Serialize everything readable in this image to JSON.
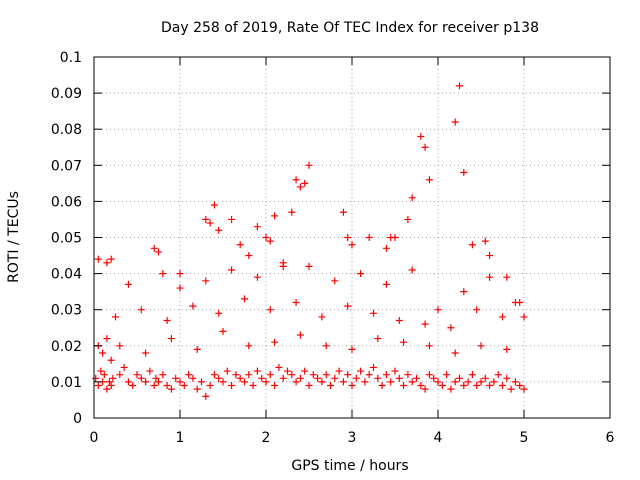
{
  "chart_data": {
    "type": "scatter",
    "title": "Day 258 of 2019, Rate Of TEC Index for receiver p138",
    "xlabel": "GPS time / hours",
    "ylabel": "ROTI / TECUs",
    "xlim": [
      0,
      6
    ],
    "ylim": [
      0,
      0.1
    ],
    "x_ticks": [
      "0",
      "1",
      "2",
      "3",
      "4",
      "5",
      "6"
    ],
    "y_ticks": [
      "0",
      "0.01",
      "0.02",
      "0.03",
      "0.04",
      "0.05",
      "0.06",
      "0.07",
      "0.08",
      "0.09",
      "0.1"
    ],
    "grid": true,
    "marker": "+",
    "color": "#ff0000",
    "series": [
      {
        "name": "ROTI",
        "x": [
          0.02,
          0.05,
          0.08,
          0.1,
          0.12,
          0.15,
          0.18,
          0.2,
          0.22,
          0.05,
          0.1,
          0.15,
          0.2,
          0.3,
          0.35,
          0.4,
          0.45,
          0.5,
          0.55,
          0.6,
          0.65,
          0.7,
          0.72,
          0.75,
          0.8,
          0.85,
          0.9,
          0.95,
          1.0,
          1.05,
          1.1,
          1.15,
          1.2,
          1.25,
          1.3,
          1.35,
          1.4,
          1.45,
          1.5,
          1.55,
          1.6,
          1.65,
          1.7,
          1.75,
          1.8,
          1.85,
          1.9,
          1.95,
          2.0,
          2.05,
          2.1,
          2.15,
          2.2,
          2.25,
          2.3,
          2.35,
          2.4,
          2.45,
          2.5,
          2.55,
          2.6,
          2.65,
          2.7,
          2.75,
          2.8,
          2.85,
          2.9,
          2.95,
          3.0,
          3.05,
          3.1,
          3.15,
          3.2,
          3.25,
          3.3,
          3.35,
          3.4,
          3.45,
          3.5,
          3.55,
          3.6,
          3.65,
          3.7,
          3.75,
          3.8,
          3.85,
          3.9,
          3.95,
          4.0,
          4.05,
          4.1,
          4.15,
          4.2,
          4.25,
          4.3,
          4.35,
          4.4,
          4.45,
          4.5,
          4.55,
          4.6,
          4.65,
          4.7,
          4.75,
          4.8,
          4.85,
          4.9,
          4.95,
          5.0,
          0.3,
          0.6,
          0.9,
          1.2,
          1.5,
          1.8,
          2.1,
          2.4,
          2.7,
          3.0,
          3.3,
          3.6,
          3.9,
          4.2,
          4.5,
          4.8,
          0.25,
          0.55,
          0.85,
          1.15,
          1.45,
          1.75,
          2.05,
          2.35,
          2.65,
          2.95,
          3.25,
          3.55,
          3.85,
          4.15,
          4.45,
          4.75,
          0.4,
          0.8,
          1.0,
          1.3,
          1.6,
          1.9,
          2.2,
          2.5,
          2.8,
          3.1,
          3.4,
          3.7,
          4.0,
          4.3,
          4.6,
          4.9,
          1.4,
          1.45,
          1.6,
          1.7,
          1.9,
          2.0,
          2.05,
          2.1,
          2.3,
          2.35,
          2.4,
          2.45,
          2.5,
          2.9,
          2.95,
          3.4,
          3.45,
          3.65,
          3.7,
          3.8,
          3.85,
          3.9,
          4.2,
          4.25,
          4.3,
          4.55,
          4.6,
          0.7,
          0.75,
          0.05,
          0.15,
          0.2,
          1.3,
          1.35,
          1.0,
          1.8,
          2.2,
          3.0,
          3.2,
          3.5,
          4.4,
          4.8,
          4.95,
          5.0
        ],
        "y": [
          0.011,
          0.009,
          0.013,
          0.01,
          0.012,
          0.008,
          0.01,
          0.009,
          0.011,
          0.02,
          0.018,
          0.022,
          0.016,
          0.012,
          0.014,
          0.01,
          0.009,
          0.012,
          0.011,
          0.01,
          0.013,
          0.009,
          0.011,
          0.01,
          0.012,
          0.009,
          0.008,
          0.011,
          0.01,
          0.009,
          0.012,
          0.011,
          0.008,
          0.01,
          0.006,
          0.009,
          0.012,
          0.011,
          0.01,
          0.013,
          0.009,
          0.012,
          0.011,
          0.01,
          0.012,
          0.009,
          0.013,
          0.011,
          0.01,
          0.012,
          0.009,
          0.014,
          0.011,
          0.013,
          0.012,
          0.01,
          0.011,
          0.013,
          0.009,
          0.012,
          0.011,
          0.01,
          0.012,
          0.009,
          0.011,
          0.013,
          0.01,
          0.012,
          0.009,
          0.011,
          0.013,
          0.01,
          0.012,
          0.014,
          0.011,
          0.009,
          0.012,
          0.01,
          0.013,
          0.011,
          0.009,
          0.012,
          0.01,
          0.011,
          0.009,
          0.008,
          0.012,
          0.011,
          0.01,
          0.009,
          0.012,
          0.008,
          0.01,
          0.011,
          0.009,
          0.01,
          0.012,
          0.009,
          0.01,
          0.011,
          0.009,
          0.01,
          0.012,
          0.009,
          0.011,
          0.008,
          0.01,
          0.009,
          0.008,
          0.02,
          0.018,
          0.022,
          0.019,
          0.024,
          0.02,
          0.021,
          0.023,
          0.02,
          0.019,
          0.022,
          0.021,
          0.02,
          0.018,
          0.02,
          0.019,
          0.028,
          0.03,
          0.027,
          0.031,
          0.029,
          0.033,
          0.03,
          0.032,
          0.028,
          0.031,
          0.029,
          0.027,
          0.026,
          0.025,
          0.03,
          0.028,
          0.037,
          0.04,
          0.036,
          0.038,
          0.041,
          0.039,
          0.043,
          0.042,
          0.038,
          0.04,
          0.037,
          0.041,
          0.03,
          0.035,
          0.039,
          0.032,
          0.059,
          0.052,
          0.055,
          0.048,
          0.053,
          0.05,
          0.049,
          0.056,
          0.057,
          0.066,
          0.064,
          0.065,
          0.07,
          0.057,
          0.05,
          0.047,
          0.05,
          0.055,
          0.061,
          0.078,
          0.075,
          0.066,
          0.082,
          0.092,
          0.068,
          0.049,
          0.045,
          0.047,
          0.046,
          0.044,
          0.043,
          0.044,
          0.055,
          0.054,
          0.04,
          0.045,
          0.042,
          0.048,
          0.05,
          0.05,
          0.048,
          0.039,
          0.032,
          0.028
        ]
      }
    ]
  }
}
